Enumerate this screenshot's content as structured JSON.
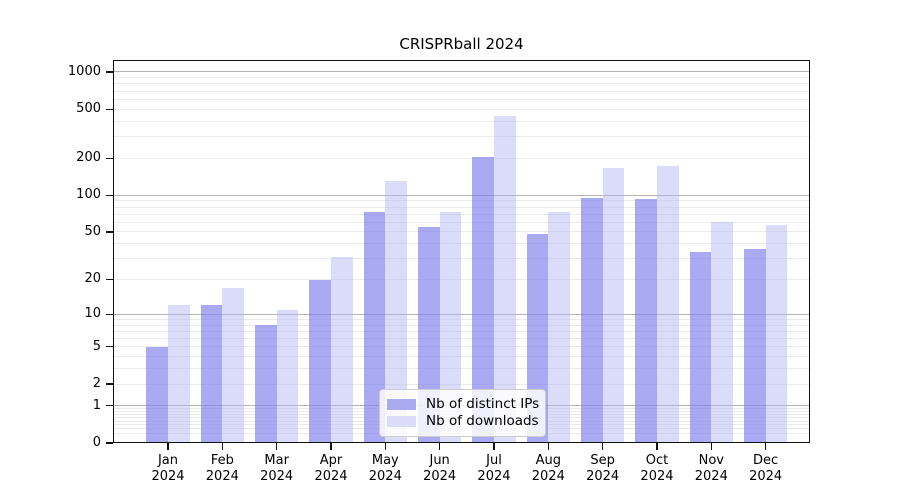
{
  "title": "CRISPRball 2024",
  "legend": {
    "items": [
      {
        "label": "Nb of distinct IPs"
      },
      {
        "label": "Nb of downloads"
      }
    ]
  },
  "chart_data": {
    "type": "bar",
    "title": "CRISPRball 2024",
    "categories": [
      "Jan",
      "Feb",
      "Mar",
      "Apr",
      "May",
      "Jun",
      "Jul",
      "Aug",
      "Sep",
      "Oct",
      "Nov",
      "Dec"
    ],
    "x_year_label": "2024",
    "series": [
      {
        "name": "Nb of distinct IPs",
        "values": [
          5,
          12,
          8,
          20,
          73,
          55,
          205,
          48,
          94,
          93,
          34,
          36
        ],
        "fill": "rgba(124,124,237,0.65)",
        "legend_fill": "#aaaaf0"
      },
      {
        "name": "Nb of downloads",
        "values": [
          12,
          17,
          11,
          31,
          130,
          73,
          440,
          73,
          167,
          172,
          60,
          57
        ],
        "fill": "rgba(175,175,244,0.45)",
        "legend_fill": "#dcdcf9"
      }
    ],
    "y_ticks": [
      0,
      1,
      2,
      5,
      10,
      20,
      50,
      100,
      200,
      500,
      1000
    ],
    "y_major_gridlines": [
      1,
      10,
      100,
      1000
    ],
    "y_scale": "log10(value+1)",
    "y_max": 1250,
    "ylim": [
      0,
      1250
    ],
    "xlabel": "",
    "ylabel": "",
    "grid": "horizontal, major + minor",
    "grid_major_color": "#b4b4b4",
    "grid_minor_color": "#ebebeb",
    "legend_position": "lower center"
  }
}
